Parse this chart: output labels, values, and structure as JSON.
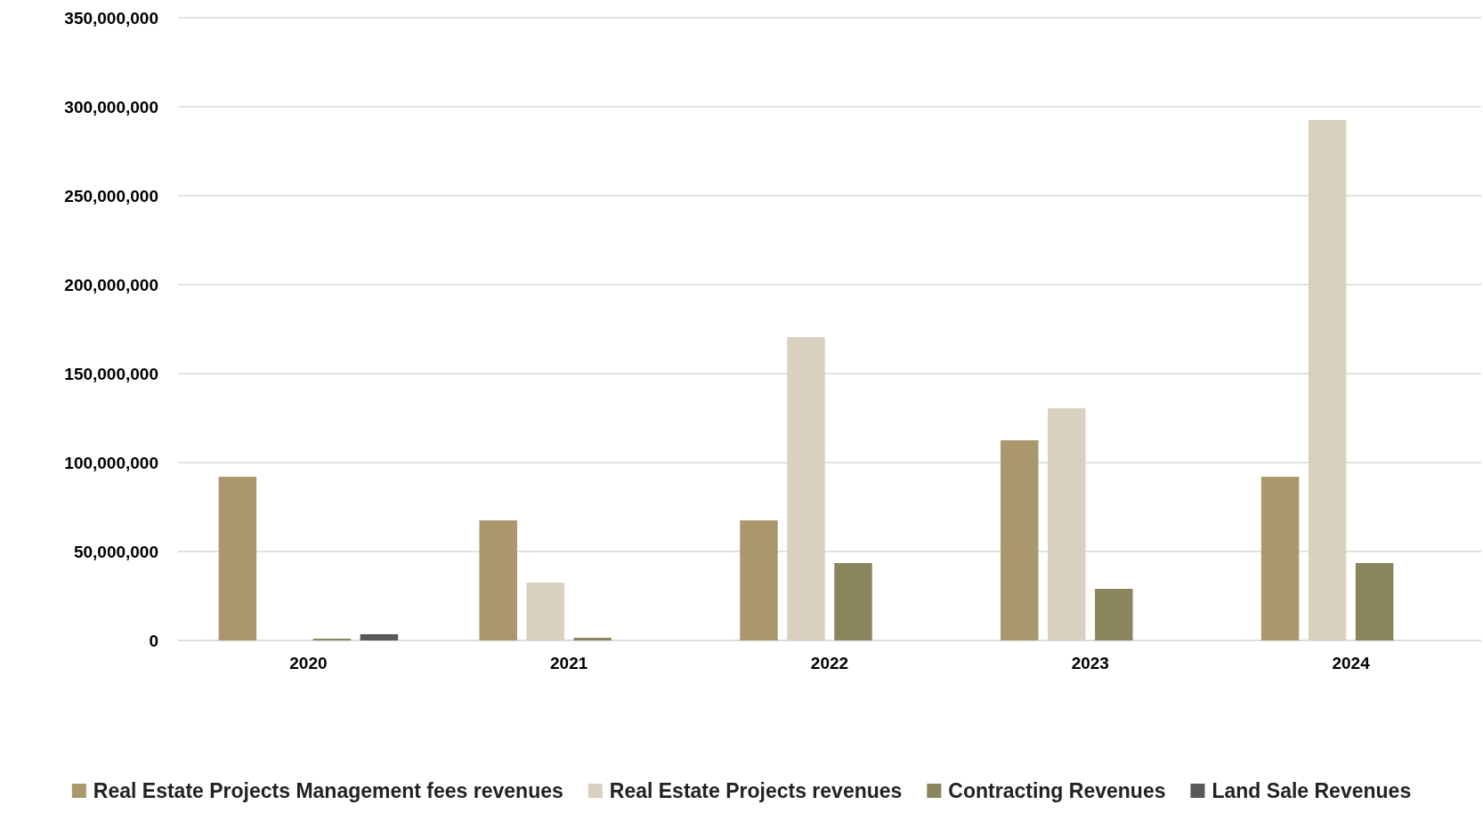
{
  "chart_data": {
    "type": "bar",
    "categories": [
      "2020",
      "2021",
      "2022",
      "2023",
      "2024"
    ],
    "series": [
      {
        "name": "Real Estate Projects Management fees revenues",
        "color": "#ab976d",
        "values": [
          92000000,
          67500000,
          67500000,
          112500000,
          92000000
        ]
      },
      {
        "name": "Real Estate Projects revenues",
        "color": "#d9d0bf",
        "values": [
          null,
          32500000,
          170500000,
          130500000,
          292500000
        ]
      },
      {
        "name": "Contracting Revenues",
        "color": "#8a855c",
        "values": [
          1000000,
          1500000,
          43500000,
          29000000,
          43500000
        ]
      },
      {
        "name": "Land Sale Revenues",
        "color": "#595959",
        "values": [
          3500000,
          null,
          null,
          null,
          null
        ]
      }
    ],
    "ylim": [
      0,
      350000000
    ],
    "yticks": [
      {
        "value": 0,
        "label": "0"
      },
      {
        "value": 50000000,
        "label": "50,000,000"
      },
      {
        "value": 100000000,
        "label": "100,000,000"
      },
      {
        "value": 150000000,
        "label": "150,000,000"
      },
      {
        "value": 200000000,
        "label": "200,000,000"
      },
      {
        "value": 250000000,
        "label": "250,000,000"
      },
      {
        "value": 300000000,
        "label": "300,000,000"
      },
      {
        "value": 350000000,
        "label": "350,000,000"
      }
    ],
    "grid": "y",
    "legend": "bottom"
  }
}
